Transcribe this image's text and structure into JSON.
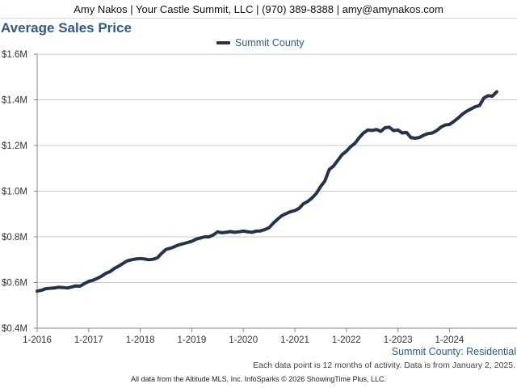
{
  "header": {
    "contact_line": "Amy Nakos | Your Castle Summit, LLC | (970) 389-8388 | amy@amynakos.com"
  },
  "chart": {
    "title": "Average Sales Price",
    "legend_label": "Summit County",
    "subtitle": "Summit County: Residential",
    "note": "Each data point is 12 months of activity. Data is from January 2, 2025."
  },
  "footer": {
    "text": "All data from the Altitude MLS, Inc. InfoSparks © 2026 ShowingTime Plus, LLC."
  },
  "colors": {
    "line": "#243347",
    "title": "#2f5b8a",
    "grid": "#c8c8c8"
  },
  "chart_data": {
    "type": "line",
    "title": "Average Sales Price",
    "xlabel": "",
    "ylabel": "",
    "ylim": [
      400000,
      1600000
    ],
    "xlim": [
      2016.0,
      2024.917
    ],
    "grid": true,
    "legend_placement": "top",
    "y_ticks": [
      {
        "value": 400000,
        "label": "$0.4M"
      },
      {
        "value": 600000,
        "label": "$0.6M"
      },
      {
        "value": 800000,
        "label": "$0.8M"
      },
      {
        "value": 1000000,
        "label": "$1.0M"
      },
      {
        "value": 1200000,
        "label": "$1.2M"
      },
      {
        "value": 1400000,
        "label": "$1.4M"
      },
      {
        "value": 1600000,
        "label": "$1.6M"
      }
    ],
    "x_ticks": [
      {
        "value": 2016,
        "label": "1-2016"
      },
      {
        "value": 2017,
        "label": "1-2017"
      },
      {
        "value": 2018,
        "label": "1-2018"
      },
      {
        "value": 2019,
        "label": "1-2019"
      },
      {
        "value": 2020,
        "label": "1-2020"
      },
      {
        "value": 2021,
        "label": "1-2021"
      },
      {
        "value": 2022,
        "label": "1-2022"
      },
      {
        "value": 2023,
        "label": "1-2023"
      },
      {
        "value": 2024,
        "label": "1-2024"
      }
    ],
    "series": [
      {
        "name": "Summit County",
        "color": "#243347",
        "x": [
          2016.0,
          2016.083,
          2016.167,
          2016.25,
          2016.333,
          2016.417,
          2016.5,
          2016.583,
          2016.667,
          2016.75,
          2016.833,
          2016.917,
          2017.0,
          2017.083,
          2017.167,
          2017.25,
          2017.333,
          2017.417,
          2017.5,
          2017.583,
          2017.667,
          2017.75,
          2017.833,
          2017.917,
          2018.0,
          2018.083,
          2018.167,
          2018.25,
          2018.333,
          2018.417,
          2018.5,
          2018.583,
          2018.667,
          2018.75,
          2018.833,
          2018.917,
          2019.0,
          2019.083,
          2019.167,
          2019.25,
          2019.333,
          2019.417,
          2019.5,
          2019.583,
          2019.667,
          2019.75,
          2019.833,
          2019.917,
          2020.0,
          2020.083,
          2020.167,
          2020.25,
          2020.333,
          2020.417,
          2020.5,
          2020.583,
          2020.667,
          2020.75,
          2020.833,
          2020.917,
          2021.0,
          2021.083,
          2021.167,
          2021.25,
          2021.333,
          2021.417,
          2021.5,
          2021.583,
          2021.667,
          2021.75,
          2021.833,
          2021.917,
          2022.0,
          2022.083,
          2022.167,
          2022.25,
          2022.333,
          2022.417,
          2022.5,
          2022.583,
          2022.667,
          2022.75,
          2022.833,
          2022.917,
          2023.0,
          2023.083,
          2023.167,
          2023.25,
          2023.333,
          2023.417,
          2023.5,
          2023.583,
          2023.667,
          2023.75,
          2023.833,
          2023.917,
          2024.0,
          2024.083,
          2024.167,
          2024.25,
          2024.333,
          2024.417,
          2024.5,
          2024.583,
          2024.667,
          2024.75,
          2024.833,
          2024.917
        ],
        "values": [
          562000,
          566000,
          573000,
          575000,
          576000,
          579000,
          578000,
          576000,
          580000,
          585000,
          584000,
          595000,
          605000,
          610000,
          618000,
          628000,
          640000,
          648000,
          662000,
          672000,
          684000,
          695000,
          700000,
          703000,
          705000,
          703000,
          700000,
          702000,
          708000,
          728000,
          745000,
          750000,
          757000,
          765000,
          770000,
          775000,
          780000,
          790000,
          795000,
          800000,
          800000,
          808000,
          822000,
          818000,
          820000,
          823000,
          820000,
          822000,
          825000,
          822000,
          820000,
          825000,
          826000,
          832000,
          840000,
          860000,
          878000,
          893000,
          902000,
          910000,
          915000,
          925000,
          945000,
          955000,
          970000,
          990000,
          1020000,
          1045000,
          1095000,
          1110000,
          1135000,
          1160000,
          1175000,
          1195000,
          1210000,
          1235000,
          1255000,
          1268000,
          1266000,
          1270000,
          1262000,
          1278000,
          1280000,
          1265000,
          1268000,
          1255000,
          1257000,
          1235000,
          1232000,
          1235000,
          1245000,
          1252000,
          1255000,
          1265000,
          1280000,
          1290000,
          1292000,
          1305000,
          1320000,
          1337000,
          1350000,
          1360000,
          1370000,
          1375000,
          1408000,
          1418000,
          1416000,
          1435000
        ]
      }
    ]
  }
}
